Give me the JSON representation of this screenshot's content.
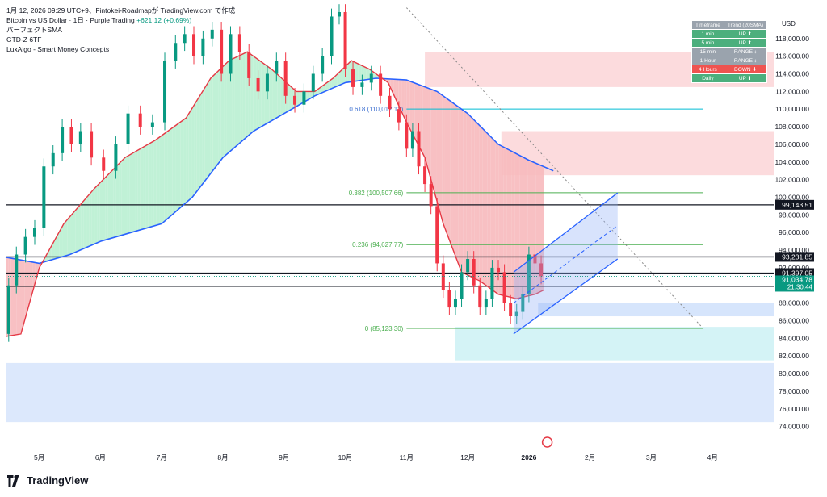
{
  "header": {
    "title_line": "1月 12, 2026 09:29 UTC+9、Fintokei-Roadmapが TradingView.com で作成",
    "symbol": "Bitcoin vs US Dollar · 1日 · Purple Trading",
    "change": "+621.12 (+0.69%)",
    "indicators": [
      "パーフェクトSMA",
      "GTD-Z 6TF",
      "LuxAlgo - Smart Money Concepts"
    ]
  },
  "currency": "USD",
  "trend_table": {
    "headers": [
      "Timeframe",
      "Trend (20SMA)"
    ],
    "rows": [
      {
        "tf": "1 min",
        "trend": "UP ⬆",
        "color": "#4caf7d"
      },
      {
        "tf": "5 min",
        "trend": "UP ⬆",
        "color": "#4caf7d"
      },
      {
        "tf": "15 min",
        "trend": "RANGE ↕",
        "color": "#9aa3ad"
      },
      {
        "tf": "1 Hour",
        "trend": "RANGE ↕",
        "color": "#9aa3ad"
      },
      {
        "tf": "4 Hours",
        "trend": "DOWN ⬇",
        "color": "#ef5350"
      },
      {
        "tf": "Daily",
        "trend": "UP ⬆",
        "color": "#4caf7d"
      }
    ]
  },
  "logo_text": "TradingView",
  "chart_data": {
    "type": "line",
    "x_tick_labels": [
      "5月",
      "6月",
      "7月",
      "8月",
      "9月",
      "10月",
      "11月",
      "12月",
      "2026",
      "2月",
      "3月",
      "4月"
    ],
    "x_tick_months": [
      0,
      1,
      2,
      3,
      4,
      5,
      6,
      7,
      8,
      9,
      10,
      11
    ],
    "y_ticks": [
      74000,
      76000,
      78000,
      80000,
      82000,
      84000,
      86000,
      88000,
      90000,
      92000,
      94000,
      96000,
      98000,
      100000,
      102000,
      104000,
      106000,
      108000,
      110000,
      112000,
      114000,
      116000,
      118000
    ],
    "y_tick_labels": [
      "74,000.00",
      "76,000.00",
      "78,000.00",
      "80,000.00",
      "82,000.00",
      "84,000.00",
      "86,000.00",
      "88,000.00",
      "90,000.00",
      "92,000.00",
      "94,000.00",
      "96,000.00",
      "98,000.00",
      "100,000.00",
      "102,000.00",
      "104,000.00",
      "106,000.00",
      "108,000.00",
      "110,000.00",
      "112,000.00",
      "114,000.00",
      "116,000.00",
      "118,000.00"
    ],
    "ylim": [
      72500,
      121000
    ],
    "xlim": [
      -0.55,
      12.0
    ],
    "price_series": {
      "name": "BTCUSD",
      "x": [
        -0.55,
        -0.45,
        -0.3,
        -0.15,
        0.0,
        0.15,
        0.3,
        0.45,
        0.6,
        0.75,
        0.95,
        1.15,
        1.35,
        1.55,
        1.75,
        1.95,
        2.15,
        2.3,
        2.45,
        2.6,
        2.75,
        2.9,
        3.05,
        3.2,
        3.35,
        3.5,
        3.65,
        3.8,
        3.95,
        4.1,
        4.25,
        4.4,
        4.55,
        4.7,
        4.85,
        4.95,
        5.05,
        5.2,
        5.35,
        5.5,
        5.65,
        5.8,
        5.95,
        6.05,
        6.15,
        6.25,
        6.35,
        6.45,
        6.55,
        6.65,
        6.75,
        6.85,
        6.95,
        7.05,
        7.15,
        7.25,
        7.35,
        7.45,
        7.55,
        7.65,
        7.75,
        7.85,
        7.95,
        8.05,
        8.15,
        8.25
      ],
      "y": [
        84500,
        90000,
        93500,
        95500,
        96500,
        103500,
        105000,
        108000,
        106000,
        107500,
        104500,
        103000,
        106000,
        109500,
        108000,
        108500,
        115500,
        117500,
        118500,
        116000,
        118000,
        119000,
        114000,
        118500,
        116500,
        113500,
        112000,
        114000,
        115500,
        111500,
        110500,
        112000,
        114000,
        116000,
        120500,
        121000,
        114500,
        112500,
        113000,
        114000,
        111500,
        110000,
        108500,
        105500,
        107500,
        103500,
        101500,
        99000,
        92500,
        89500,
        87500,
        88500,
        91500,
        93000,
        90000,
        87500,
        88500,
        92000,
        91500,
        88000,
        86500,
        87000,
        89000,
        93500,
        92500,
        91035
      ]
    },
    "sma_fast": {
      "x": [
        -0.55,
        -0.3,
        0.0,
        0.4,
        0.9,
        1.4,
        1.9,
        2.4,
        2.8,
        3.1,
        3.4,
        3.8,
        4.2,
        4.5,
        4.8,
        5.1,
        5.4,
        5.7,
        6.0,
        6.3,
        6.6,
        6.9,
        7.2,
        7.5,
        7.8,
        8.1,
        8.25
      ],
      "y": [
        84200,
        84500,
        92000,
        97000,
        101000,
        104500,
        106500,
        109000,
        113500,
        115500,
        116500,
        114500,
        112000,
        112000,
        113500,
        115500,
        114500,
        113000,
        108500,
        104500,
        97000,
        91500,
        90500,
        89000,
        88500,
        89000,
        89500
      ]
    },
    "sma_slow": {
      "x": [
        -0.55,
        0.0,
        0.5,
        1.0,
        1.5,
        2.0,
        2.5,
        3.0,
        3.5,
        4.0,
        4.5,
        5.0,
        5.5,
        6.0,
        6.5,
        7.0,
        7.5,
        8.0,
        8.4
      ],
      "y": [
        93200,
        92500,
        93500,
        95000,
        96000,
        97000,
        100000,
        104500,
        107500,
        109500,
        111500,
        113000,
        113500,
        113300,
        112000,
        109500,
        106000,
        104200,
        103000
      ]
    },
    "fibonacci": [
      {
        "label": "0.618 (110,012.13)",
        "value": 110012.13,
        "color": "#00bcd4"
      },
      {
        "label": "0.382 (100,507.66)",
        "value": 100507.66,
        "color": "#4caf50"
      },
      {
        "label": "0.236 (94,627.77)",
        "value": 94627.77,
        "color": "#4caf50"
      },
      {
        "label": "0 (85,123.30)",
        "value": 85123.3,
        "color": "#4caf50"
      }
    ],
    "horizontal_levels": [
      {
        "label": "99,143.51",
        "value": 99143.51
      },
      {
        "label": "93,231.85",
        "value": 93231.85
      },
      {
        "label": "91,397.05",
        "value": 91397.05
      },
      {
        "label": "89,896.05",
        "value": 89896.05
      }
    ],
    "current_price": {
      "label": "91,034.78",
      "value": 91034.78,
      "countdown": "21:30:44",
      "color": "#089981"
    },
    "zones": [
      {
        "kind": "supply",
        "x1": 6.3,
        "x2": 12.0,
        "y1": 112500,
        "y2": 116500,
        "color": "#fbd5d7"
      },
      {
        "kind": "supply",
        "x1": 7.55,
        "x2": 12.0,
        "y1": 102500,
        "y2": 107500,
        "color": "#fbd5d7"
      },
      {
        "kind": "demand",
        "x1": 8.15,
        "x2": 12.0,
        "y1": 86500,
        "y2": 88000,
        "color": "#cfe0fb"
      },
      {
        "kind": "demand",
        "x1": 6.8,
        "x2": 12.0,
        "y1": 81500,
        "y2": 85300,
        "color": "#cdf1f5"
      },
      {
        "kind": "demand",
        "x1": -0.55,
        "x2": 12.0,
        "y1": 74500,
        "y2": 81200,
        "color": "#d6e4fb"
      }
    ],
    "channel": {
      "lower": [
        [
          7.75,
          84500
        ],
        [
          9.45,
          93000
        ]
      ],
      "upper": [
        [
          7.75,
          91500
        ],
        [
          9.45,
          100500
        ]
      ],
      "mid": [
        [
          7.75,
          88000
        ],
        [
          9.45,
          96800
        ]
      ]
    },
    "trendline": [
      [
        6.0,
        121500
      ],
      [
        10.85,
        85100
      ]
    ]
  }
}
